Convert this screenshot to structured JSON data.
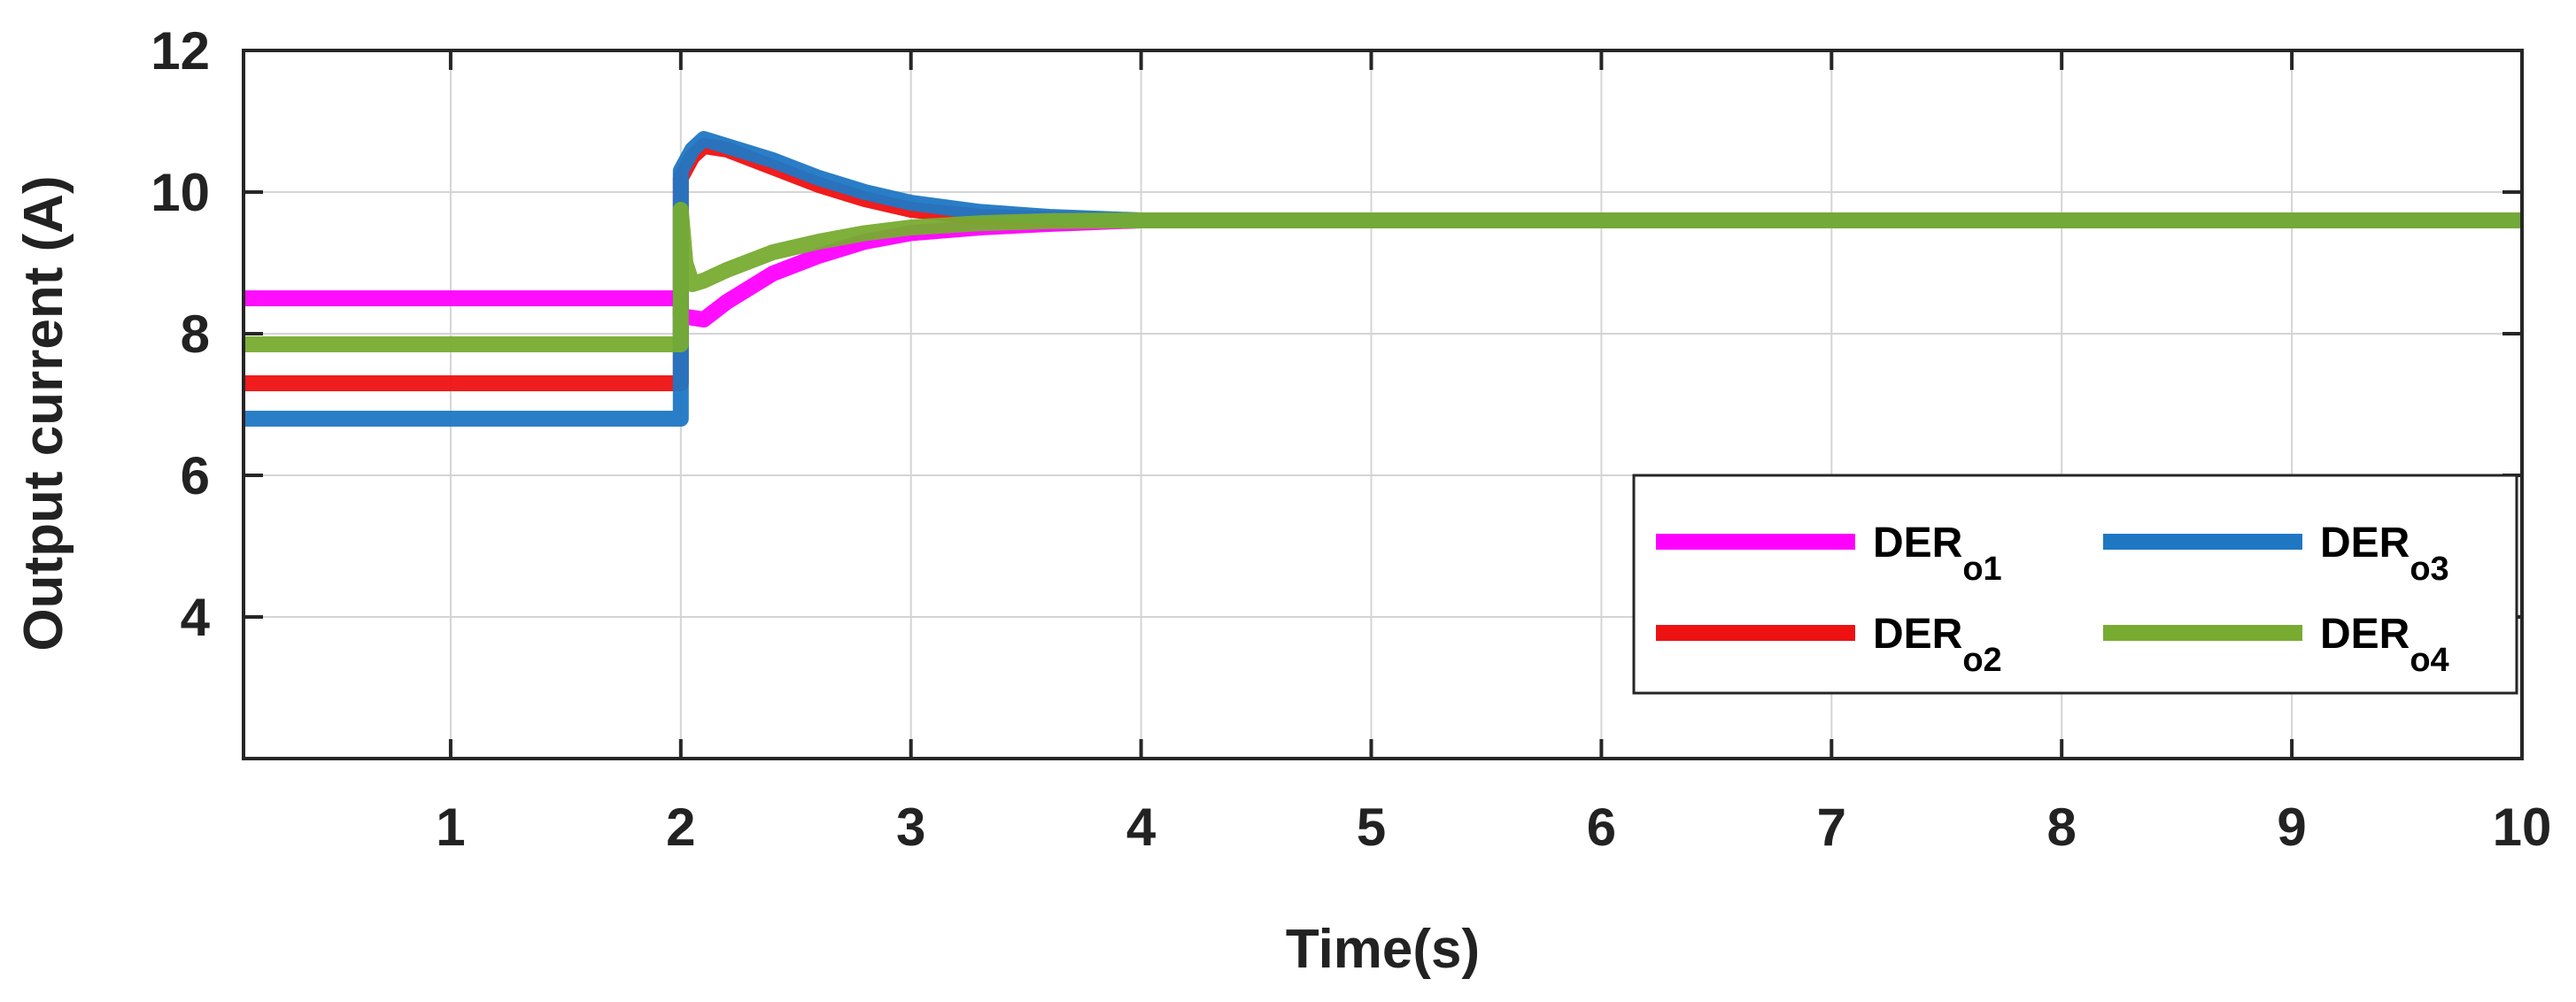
{
  "chart_data": {
    "type": "line",
    "title": "",
    "xlabel": "Time(s)",
    "ylabel": "Output current (A)",
    "xlim": [
      0.1,
      10
    ],
    "ylim": [
      2,
      12
    ],
    "xticks": [
      1,
      2,
      3,
      4,
      5,
      6,
      7,
      8,
      9,
      10
    ],
    "yticks": [
      4,
      6,
      8,
      10,
      12
    ],
    "grid": true,
    "legend_position": "lower-right",
    "legend_columns": 2,
    "series": [
      {
        "name": "DER",
        "subscript": "o1",
        "color": "#ff00ff",
        "x": [
          0.1,
          2.0,
          2.0,
          2.1,
          2.2,
          2.4,
          2.6,
          2.8,
          3.0,
          3.3,
          3.6,
          4.0,
          4.5,
          5,
          10
        ],
        "y": [
          8.5,
          8.5,
          8.25,
          8.2,
          8.45,
          8.85,
          9.1,
          9.3,
          9.42,
          9.5,
          9.55,
          9.6,
          9.6,
          9.6,
          9.6
        ]
      },
      {
        "name": "DER",
        "subscript": "o2",
        "color": "#ee1111",
        "x": [
          0.1,
          2.0,
          2.0,
          2.05,
          2.1,
          2.2,
          2.4,
          2.6,
          2.8,
          3.0,
          3.3,
          3.6,
          4.0,
          4.5,
          5,
          10
        ],
        "y": [
          7.3,
          7.3,
          10.2,
          10.5,
          10.65,
          10.6,
          10.35,
          10.1,
          9.9,
          9.75,
          9.65,
          9.62,
          9.6,
          9.6,
          9.6,
          9.6
        ]
      },
      {
        "name": "DER",
        "subscript": "o3",
        "color": "#1f77c4",
        "x": [
          0.1,
          2.0,
          2.0,
          2.05,
          2.1,
          2.2,
          2.4,
          2.6,
          2.8,
          3.0,
          3.3,
          3.6,
          4.0,
          4.5,
          5,
          10
        ],
        "y": [
          6.8,
          6.8,
          10.3,
          10.6,
          10.75,
          10.65,
          10.45,
          10.2,
          10.0,
          9.85,
          9.72,
          9.65,
          9.6,
          9.6,
          9.6,
          9.6
        ]
      },
      {
        "name": "DER",
        "subscript": "o4",
        "color": "#77ac30",
        "x": [
          0.1,
          2.0,
          2.0,
          2.02,
          2.05,
          2.1,
          2.2,
          2.4,
          2.6,
          2.8,
          3.0,
          3.3,
          3.6,
          4.0,
          4.5,
          5,
          10
        ],
        "y": [
          7.85,
          7.85,
          9.75,
          9.0,
          8.7,
          8.75,
          8.9,
          9.15,
          9.3,
          9.42,
          9.5,
          9.56,
          9.59,
          9.6,
          9.6,
          9.6,
          9.6
        ]
      }
    ]
  }
}
